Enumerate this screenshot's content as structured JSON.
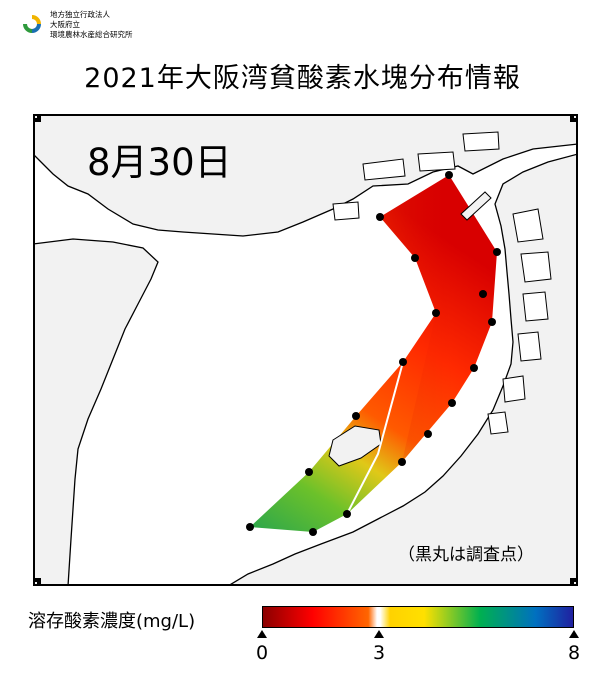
{
  "logo": {
    "lines": [
      "地方独立行政法人",
      "大阪府立",
      "環境農林水産総合研究所"
    ],
    "colors": [
      "#f0b400",
      "#1a6fb0",
      "#2e9a3c"
    ]
  },
  "header": {
    "title": "2021年大阪湾貧酸素水塊分布情報"
  },
  "map": {
    "date_label": "8月30日",
    "note": "（黒丸は調査点）",
    "land_color": "#f2f2f2",
    "sea_color": "#ffffff",
    "station_count": 17
  },
  "legend": {
    "title": "溶存酸素濃度(mg/L)",
    "ticks": [
      {
        "label": "0",
        "value": 0
      },
      {
        "label": "3",
        "value": 3
      },
      {
        "label": "8",
        "value": 8
      }
    ],
    "range": [
      0,
      8
    ],
    "gradient_colors": [
      "#8b0000",
      "#ff0000",
      "#ff6600",
      "#ffe000",
      "#00b050",
      "#0070c0",
      "#2020a0"
    ]
  }
}
